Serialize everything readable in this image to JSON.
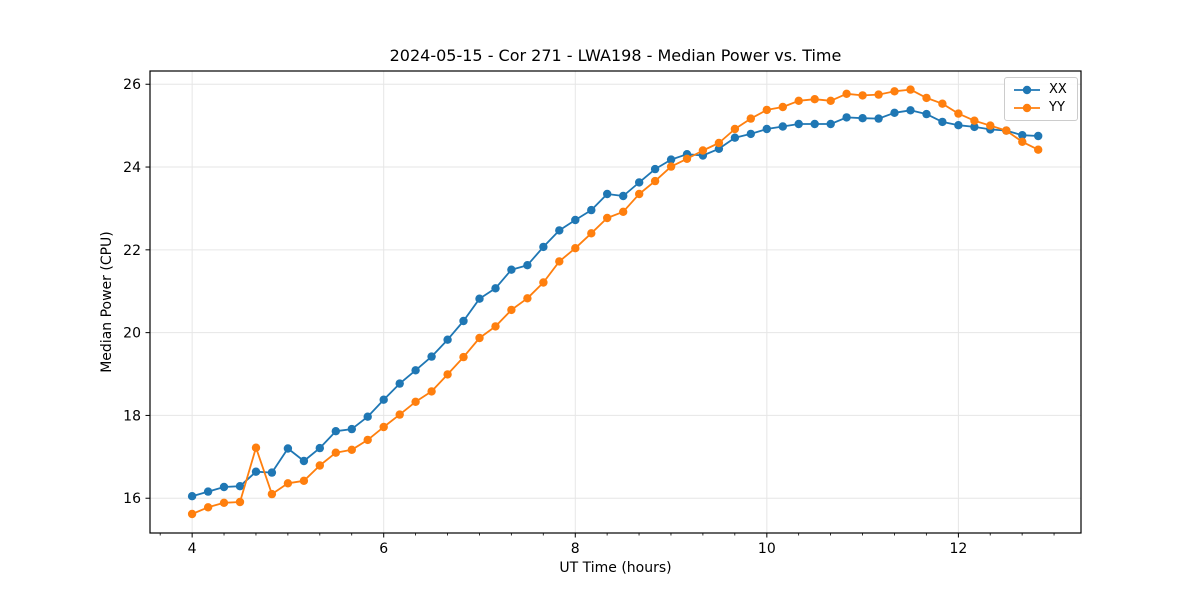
{
  "chart_data": {
    "type": "line",
    "title": "2024-05-15 - Cor 271 - LWA198 - Median Power vs. Time",
    "xlabel": "UT Time (hours)",
    "ylabel": "Median Power (CPU)",
    "xlim": [
      3.56,
      13.28
    ],
    "ylim": [
      15.16,
      26.32
    ],
    "x_ticks": [
      4,
      6,
      8,
      10,
      12
    ],
    "x_tick_labels": [
      "4",
      "6",
      "8",
      "10",
      "12"
    ],
    "x_minor_tick_step": 0.3333,
    "y_ticks": [
      16,
      18,
      20,
      22,
      24,
      26
    ],
    "y_tick_labels": [
      "16",
      "18",
      "20",
      "22",
      "24",
      "26"
    ],
    "grid": true,
    "grid_color": "#e6e6e6",
    "spine_color": "#000000",
    "legend_position": "upper right",
    "x": [
      4.0,
      4.167,
      4.333,
      4.5,
      4.667,
      4.833,
      5.0,
      5.167,
      5.333,
      5.5,
      5.667,
      5.833,
      6.0,
      6.167,
      6.333,
      6.5,
      6.667,
      6.833,
      7.0,
      7.167,
      7.333,
      7.5,
      7.667,
      7.833,
      8.0,
      8.167,
      8.333,
      8.5,
      8.667,
      8.833,
      9.0,
      9.167,
      9.333,
      9.5,
      9.667,
      9.833,
      10.0,
      10.167,
      10.333,
      10.5,
      10.667,
      10.833,
      11.0,
      11.167,
      11.333,
      11.5,
      11.667,
      11.833,
      12.0,
      12.167,
      12.333,
      12.5,
      12.667,
      12.833
    ],
    "series": [
      {
        "name": "XX",
        "color": "#1f77b4",
        "values": [
          16.05,
          16.16,
          16.27,
          16.29,
          16.64,
          16.62,
          17.2,
          16.9,
          17.21,
          17.62,
          17.67,
          17.97,
          18.38,
          18.77,
          19.09,
          19.42,
          19.83,
          20.28,
          20.82,
          21.07,
          21.52,
          21.63,
          22.07,
          22.47,
          22.72,
          22.96,
          23.35,
          23.3,
          23.63,
          23.95,
          24.18,
          24.31,
          24.28,
          24.44,
          24.71,
          24.8,
          24.92,
          24.98,
          25.04,
          25.04,
          25.04,
          25.2,
          25.18,
          25.17,
          25.31,
          25.37,
          25.28,
          25.09,
          25.01,
          24.97,
          24.91,
          24.88,
          24.77,
          24.75
        ]
      },
      {
        "name": "YY",
        "color": "#ff7f0e",
        "values": [
          15.62,
          15.78,
          15.89,
          15.91,
          17.22,
          16.1,
          16.36,
          16.42,
          16.79,
          17.1,
          17.17,
          17.41,
          17.72,
          18.02,
          18.33,
          18.58,
          18.99,
          19.41,
          19.87,
          20.15,
          20.55,
          20.83,
          21.21,
          21.72,
          22.04,
          22.4,
          22.77,
          22.92,
          23.35,
          23.66,
          24.01,
          24.2,
          24.4,
          24.58,
          24.92,
          25.17,
          25.38,
          25.45,
          25.6,
          25.64,
          25.6,
          25.77,
          25.73,
          25.75,
          25.83,
          25.87,
          25.67,
          25.53,
          25.29,
          25.12,
          25.0,
          24.88,
          24.61,
          24.42
        ]
      }
    ]
  }
}
